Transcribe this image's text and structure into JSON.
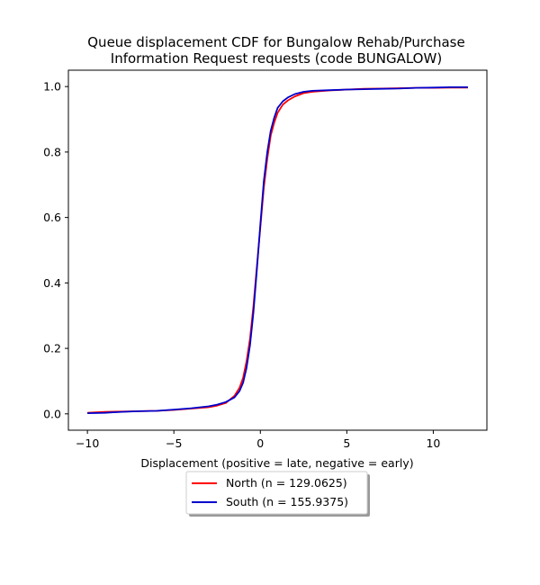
{
  "chart_data": {
    "type": "line",
    "title_lines": [
      "Queue displacement CDF for Bungalow Rehab/Purchase",
      "Information Request  requests (code BUNGALOW)"
    ],
    "xlabel": "Displacement (positive = late, negative = early)",
    "ylabel": "",
    "xlim": [
      -11.1,
      13.1
    ],
    "ylim": [
      -0.05,
      1.05
    ],
    "xticks": [
      -10,
      -5,
      0,
      5,
      10
    ],
    "yticks": [
      0.0,
      0.2,
      0.4,
      0.6,
      0.8,
      1.0
    ],
    "xtick_labels": [
      "−10",
      "−5",
      "0",
      "5",
      "10"
    ],
    "ytick_labels": [
      "0.0",
      "0.2",
      "0.4",
      "0.6",
      "0.8",
      "1.0"
    ],
    "grid": false,
    "legend_position": "below plot, centered",
    "series": [
      {
        "name": "North (n = 129.0625)",
        "color": "#ff0000",
        "x": [
          -10,
          -9,
          -8,
          -7,
          -6,
          -5,
          -4,
          -3,
          -2.5,
          -2,
          -1.5,
          -1.2,
          -1.0,
          -0.8,
          -0.6,
          -0.4,
          -0.2,
          0,
          0.2,
          0.4,
          0.6,
          0.8,
          1.0,
          1.3,
          1.6,
          2.0,
          2.5,
          3,
          4,
          5,
          6,
          7,
          8,
          9,
          10,
          11,
          12
        ],
        "y": [
          0.003,
          0.006,
          0.007,
          0.008,
          0.009,
          0.012,
          0.016,
          0.02,
          0.025,
          0.033,
          0.055,
          0.08,
          0.11,
          0.16,
          0.23,
          0.33,
          0.45,
          0.57,
          0.69,
          0.78,
          0.85,
          0.89,
          0.92,
          0.945,
          0.958,
          0.97,
          0.98,
          0.984,
          0.988,
          0.991,
          0.993,
          0.994,
          0.995,
          0.996,
          0.996,
          0.997,
          0.997
        ]
      },
      {
        "name": "South (n = 155.9375)",
        "color": "#0000cc",
        "x": [
          -10,
          -9,
          -8,
          -7,
          -6,
          -5,
          -4,
          -3,
          -2.5,
          -2,
          -1.5,
          -1.2,
          -1.0,
          -0.8,
          -0.6,
          -0.4,
          -0.2,
          0,
          0.2,
          0.4,
          0.6,
          0.8,
          1.0,
          1.3,
          1.6,
          2.0,
          2.5,
          3,
          4,
          5,
          6,
          7,
          8,
          9,
          10,
          11,
          12
        ],
        "y": [
          0.002,
          0.003,
          0.006,
          0.008,
          0.009,
          0.013,
          0.017,
          0.023,
          0.028,
          0.036,
          0.05,
          0.07,
          0.095,
          0.14,
          0.21,
          0.31,
          0.44,
          0.58,
          0.71,
          0.8,
          0.865,
          0.905,
          0.935,
          0.955,
          0.967,
          0.977,
          0.984,
          0.987,
          0.989,
          0.991,
          0.992,
          0.993,
          0.994,
          0.996,
          0.997,
          0.998,
          0.998
        ]
      }
    ]
  }
}
